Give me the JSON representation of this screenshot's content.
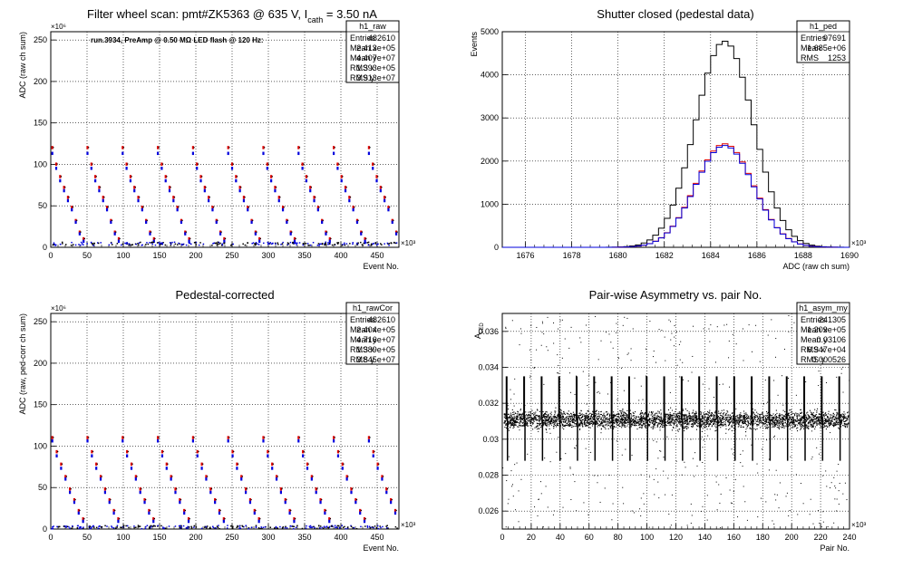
{
  "pads": [
    {
      "id": "raw",
      "title": "Filter wheel scan: pmt#ZK5363 @   635 V, I",
      "title_sub": "cath",
      "title_tail": " = 3.50 nA",
      "annotation": "run.3934, PreAmp @ 0.50 MΩ LED flash @  120 Hz:",
      "stats": {
        "name": "h1_raw",
        "rows": [
          [
            "Entries",
            "482610"
          ],
          [
            "Mean x",
            "2.413e+05"
          ],
          [
            "Mean y",
            "4.407e+07"
          ],
          [
            "RMS x",
            "1.393e+05"
          ],
          [
            "RMS y",
            "3.913e+07"
          ]
        ]
      },
      "xlabel": "Event No.",
      "ylabel": "ADC (raw ch sum)",
      "x_exp": "×10³",
      "y_exp": "×10⁶"
    },
    {
      "id": "ped",
      "title": "Shutter closed (pedestal data)",
      "stats": {
        "name": "h1_ped",
        "rows": [
          [
            "Entries",
            "97691"
          ],
          [
            "Mean",
            "1.685e+06"
          ],
          [
            "RMS",
            "1253"
          ]
        ]
      },
      "xlabel": "ADC (raw ch sum)",
      "ylabel": "Events",
      "x_exp": "×10³"
    },
    {
      "id": "cor",
      "title": "Pedestal-corrected",
      "stats": {
        "name": "h1_rawCor",
        "rows": [
          [
            "Entries",
            "482610"
          ],
          [
            "Mean x",
            "2.404e+05"
          ],
          [
            "Mean y",
            "4.716e+07"
          ],
          [
            "RMS x",
            "1.389e+05"
          ],
          [
            "RMS y",
            "3.845e+07"
          ]
        ]
      },
      "xlabel": "Event No.",
      "ylabel": "ADC (raw, ped-corr ch sum)",
      "x_exp": "×10³",
      "y_exp": "×10⁶"
    },
    {
      "id": "asym",
      "title": "Pair-wise Asymmetry vs. pair No.",
      "stats": {
        "name": "h1_asym_my",
        "rows": [
          [
            "Entries",
            "241305"
          ],
          [
            "Mean x",
            "1.209e+05"
          ],
          [
            "Mean y",
            "0.03106"
          ],
          [
            "RMS x",
            "6.947e+04"
          ],
          [
            "RMS y",
            "0.000526"
          ]
        ]
      },
      "xlabel": "Pair No.",
      "ylabel": "A",
      "ylabel_sub": "LED",
      "x_exp": "×10³"
    }
  ],
  "colors": {
    "red": "#e00000",
    "blue": "#0000dd",
    "black": "#000000",
    "grid": "#000000"
  },
  "chart_data": [
    {
      "type": "scatter",
      "title": "Filter wheel scan: pmt#ZK5363 @ 635 V, I_cath = 3.50 nA",
      "xlabel": "Event No.",
      "ylabel": "ADC (raw ch sum)",
      "x_scale": "×10³",
      "y_scale": "×10⁶",
      "xlim": [
        0,
        480
      ],
      "ylim": [
        0,
        260
      ],
      "xticks": [
        0,
        50,
        100,
        150,
        200,
        250,
        300,
        350,
        400,
        450
      ],
      "yticks": [
        0,
        50,
        100,
        150,
        200,
        250
      ],
      "grid": true,
      "level_pattern": [
        {
          "red": 120,
          "blue": 113
        },
        {
          "red": 100,
          "blue": 95
        },
        {
          "red": 85,
          "blue": 80
        },
        {
          "red": 72,
          "blue": 68
        },
        {
          "red": 60,
          "blue": 56
        },
        {
          "red": 48,
          "blue": 45
        },
        {
          "red": 32,
          "blue": 30
        },
        {
          "red": 18,
          "blue": 16
        },
        {
          "red": 10,
          "blue": 7
        }
      ],
      "pattern_period": 48.5,
      "baseline": 2
    },
    {
      "type": "line",
      "title": "Shutter closed (pedestal data)",
      "xlabel": "ADC (raw ch sum)",
      "ylabel": "Events",
      "x_scale": "×10³",
      "xlim": [
        1675,
        1690
      ],
      "ylim": [
        0,
        5000
      ],
      "xticks": [
        1676,
        1678,
        1680,
        1682,
        1684,
        1686,
        1688,
        1690
      ],
      "yticks": [
        0,
        1000,
        2000,
        3000,
        4000,
        5000
      ],
      "grid": true,
      "series": [
        {
          "color": "black",
          "mean": 1684.6,
          "sigma": 1.25,
          "peak": 4780
        },
        {
          "color": "red",
          "mean": 1684.6,
          "sigma": 1.25,
          "peak": 2400
        },
        {
          "color": "blue",
          "mean": 1684.6,
          "sigma": 1.25,
          "peak": 2360
        }
      ]
    },
    {
      "type": "scatter",
      "title": "Pedestal-corrected",
      "xlabel": "Event No.",
      "ylabel": "ADC (raw, ped-corr ch sum)",
      "x_scale": "×10³",
      "y_scale": "×10⁶",
      "xlim": [
        0,
        480
      ],
      "ylim": [
        0,
        260
      ],
      "xticks": [
        0,
        50,
        100,
        150,
        200,
        250,
        300,
        350,
        400,
        450
      ],
      "yticks": [
        0,
        50,
        100,
        150,
        200,
        250
      ],
      "grid": true,
      "level_pattern": [
        {
          "red": 110,
          "blue": 106
        },
        {
          "red": 93,
          "blue": 88
        },
        {
          "red": 78,
          "blue": 73
        },
        {
          "red": 63,
          "blue": 60
        },
        {
          "red": 48,
          "blue": 44
        },
        {
          "red": 35,
          "blue": 32
        },
        {
          "red": 22,
          "blue": 19
        },
        {
          "red": 12,
          "blue": 9
        }
      ],
      "pattern_period": 48.5,
      "baseline": 0
    },
    {
      "type": "scatter",
      "title": "Pair-wise Asymmetry vs. pair No.",
      "xlabel": "Pair No.",
      "ylabel": "A_LED",
      "x_scale": "×10³",
      "xlim": [
        0,
        240
      ],
      "ylim": [
        0.025,
        0.037
      ],
      "xticks": [
        0,
        20,
        40,
        60,
        80,
        100,
        120,
        140,
        160,
        180,
        200,
        220,
        240
      ],
      "yticks": [
        0.026,
        0.028,
        0.03,
        0.032,
        0.034,
        0.036
      ],
      "grid": true,
      "band_center": 0.0311,
      "band_halfwidth": 0.0005,
      "spike_period": 12.1,
      "spike_top": 0.0335,
      "spike_bottom": 0.0288
    }
  ]
}
